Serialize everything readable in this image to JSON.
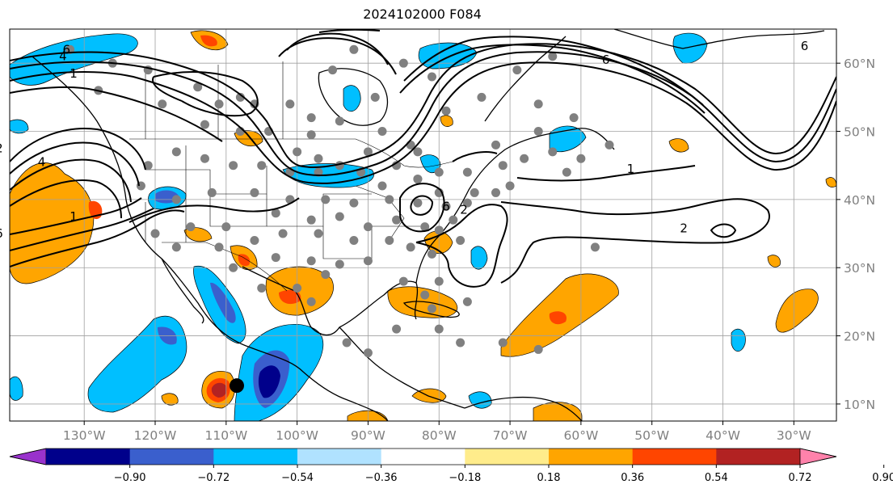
{
  "title": "2024102000 F084",
  "map": {
    "lon_ticks": [
      {
        "value": -130,
        "label": "130°W"
      },
      {
        "value": -120,
        "label": "120°W"
      },
      {
        "value": -110,
        "label": "110°W"
      },
      {
        "value": -100,
        "label": "100°W"
      },
      {
        "value": -90,
        "label": "90°W"
      },
      {
        "value": -80,
        "label": "80°W"
      },
      {
        "value": -70,
        "label": "70°W"
      },
      {
        "value": -60,
        "label": "60°W"
      },
      {
        "value": -50,
        "label": "50°W"
      },
      {
        "value": -40,
        "label": "40°W"
      },
      {
        "value": -30,
        "label": "30°W"
      }
    ],
    "lat_ticks": [
      {
        "value": 60,
        "label": "60°N"
      },
      {
        "value": 50,
        "label": "50°N"
      },
      {
        "value": 40,
        "label": "40°N"
      },
      {
        "value": 30,
        "label": "30°N"
      },
      {
        "value": 20,
        "label": "20°N"
      },
      {
        "value": 10,
        "label": "10°N"
      }
    ],
    "contour_labels": [
      {
        "text": "6",
        "lon": -132.5,
        "lat": 62
      },
      {
        "text": "4",
        "lon": -133,
        "lat": 61
      },
      {
        "text": "1",
        "lon": -131.5,
        "lat": 58.5
      },
      {
        "text": "2",
        "lon": -142,
        "lat": 47.5
      },
      {
        "text": "4",
        "lon": -136,
        "lat": 45.5
      },
      {
        "text": "6",
        "lon": -142,
        "lat": 35
      },
      {
        "text": "1",
        "lon": -131.5,
        "lat": 37.5
      },
      {
        "text": "6",
        "lon": -56.5,
        "lat": 60.5
      },
      {
        "text": "6",
        "lon": -28.5,
        "lat": 62.5
      },
      {
        "text": "1",
        "lon": -53,
        "lat": 44.5
      },
      {
        "text": "2",
        "lon": -45.5,
        "lat": 35.8
      },
      {
        "text": "2",
        "lon": -76.5,
        "lat": 38.5
      },
      {
        "text": "6",
        "lon": -79,
        "lat": 39
      }
    ],
    "storm_marker": {
      "lon": -108.5,
      "lat": 12.7
    }
  },
  "colorbar": {
    "colors": [
      "#9932CC",
      "#00008B",
      "#3A5FCD",
      "#00BFFF",
      "#B0E2FF",
      "#FFFFFF",
      "#FFEC8B",
      "#FFA500",
      "#FF4500",
      "#B22222",
      "#FF82AB"
    ],
    "tick_labels": [
      "−0.90",
      "−0.72",
      "−0.54",
      "−0.36",
      "−0.18",
      "0.18",
      "0.36",
      "0.54",
      "0.72",
      "0.90"
    ]
  },
  "stations": [
    [
      -132,
      62
    ],
    [
      -126,
      60
    ],
    [
      -128,
      56
    ],
    [
      -121,
      59
    ],
    [
      -119,
      54
    ],
    [
      -114,
      56.5
    ],
    [
      -108,
      55
    ],
    [
      -111,
      54
    ],
    [
      -106,
      54
    ],
    [
      -101,
      54
    ],
    [
      -98,
      52
    ],
    [
      -113,
      51
    ],
    [
      -108,
      50
    ],
    [
      -104,
      50
    ],
    [
      -98,
      49.5
    ],
    [
      -97,
      46
    ],
    [
      -94,
      51.5
    ],
    [
      -89,
      55
    ],
    [
      -88,
      50
    ],
    [
      -81,
      58
    ],
    [
      -84,
      48
    ],
    [
      -79,
      53
    ],
    [
      -85,
      60
    ],
    [
      -95,
      59
    ],
    [
      -92,
      62
    ],
    [
      -74,
      55
    ],
    [
      -69,
      59
    ],
    [
      -66,
      54
    ],
    [
      -64,
      61
    ],
    [
      -72,
      48
    ],
    [
      -66,
      50
    ],
    [
      -61,
      52
    ],
    [
      -60,
      46
    ],
    [
      -56,
      48
    ],
    [
      -62,
      44
    ],
    [
      -64,
      47
    ],
    [
      -68,
      46
    ],
    [
      -71,
      45
    ],
    [
      -76,
      44
    ],
    [
      -80,
      44
    ],
    [
      -83,
      43
    ],
    [
      -88,
      42
    ],
    [
      -91,
      44
    ],
    [
      -97,
      44
    ],
    [
      -101,
      44
    ],
    [
      -105,
      45
    ],
    [
      -109,
      45
    ],
    [
      -113,
      46
    ],
    [
      -117,
      47
    ],
    [
      -121,
      45
    ],
    [
      -122,
      42
    ],
    [
      -117,
      40
    ],
    [
      -112,
      41
    ],
    [
      -106,
      41
    ],
    [
      -101,
      40
    ],
    [
      -96,
      40
    ],
    [
      -92,
      39.5
    ],
    [
      -87,
      40
    ],
    [
      -83,
      39.5
    ],
    [
      -79,
      39
    ],
    [
      -76,
      39.5
    ],
    [
      -86,
      37
    ],
    [
      -82,
      36
    ],
    [
      -80,
      35.5
    ],
    [
      -90,
      36
    ],
    [
      -94,
      37.5
    ],
    [
      -98,
      37
    ],
    [
      -103,
      38
    ],
    [
      -110,
      36
    ],
    [
      -115,
      36
    ],
    [
      -120,
      35
    ],
    [
      -117,
      33
    ],
    [
      -111,
      33
    ],
    [
      -106,
      34
    ],
    [
      -102,
      35
    ],
    [
      -97,
      35
    ],
    [
      -92,
      34
    ],
    [
      -87,
      34
    ],
    [
      -84,
      33
    ],
    [
      -81,
      32
    ],
    [
      -90,
      31
    ],
    [
      -94,
      30.5
    ],
    [
      -98,
      31
    ],
    [
      -103,
      31.5
    ],
    [
      -109,
      30
    ],
    [
      -105,
      27
    ],
    [
      -100,
      27
    ],
    [
      -98,
      25
    ],
    [
      -96,
      29
    ],
    [
      -85,
      28
    ],
    [
      -82,
      26
    ],
    [
      -80,
      28
    ],
    [
      -81,
      24
    ],
    [
      -76,
      25
    ],
    [
      -86,
      21
    ],
    [
      -80,
      21
    ],
    [
      -77,
      19
    ],
    [
      -71,
      19
    ],
    [
      -66,
      18
    ],
    [
      -90,
      17.5
    ],
    [
      -93,
      19
    ],
    [
      -83,
      43
    ],
    [
      -83,
      47
    ],
    [
      -80,
      41
    ],
    [
      -75,
      41
    ],
    [
      -78,
      37
    ],
    [
      -77,
      34
    ],
    [
      -86,
      45
    ],
    [
      -90,
      47
    ],
    [
      -94,
      45
    ],
    [
      -100,
      47
    ],
    [
      -72,
      41
    ],
    [
      -70,
      42
    ],
    [
      -58,
      33
    ]
  ]
}
